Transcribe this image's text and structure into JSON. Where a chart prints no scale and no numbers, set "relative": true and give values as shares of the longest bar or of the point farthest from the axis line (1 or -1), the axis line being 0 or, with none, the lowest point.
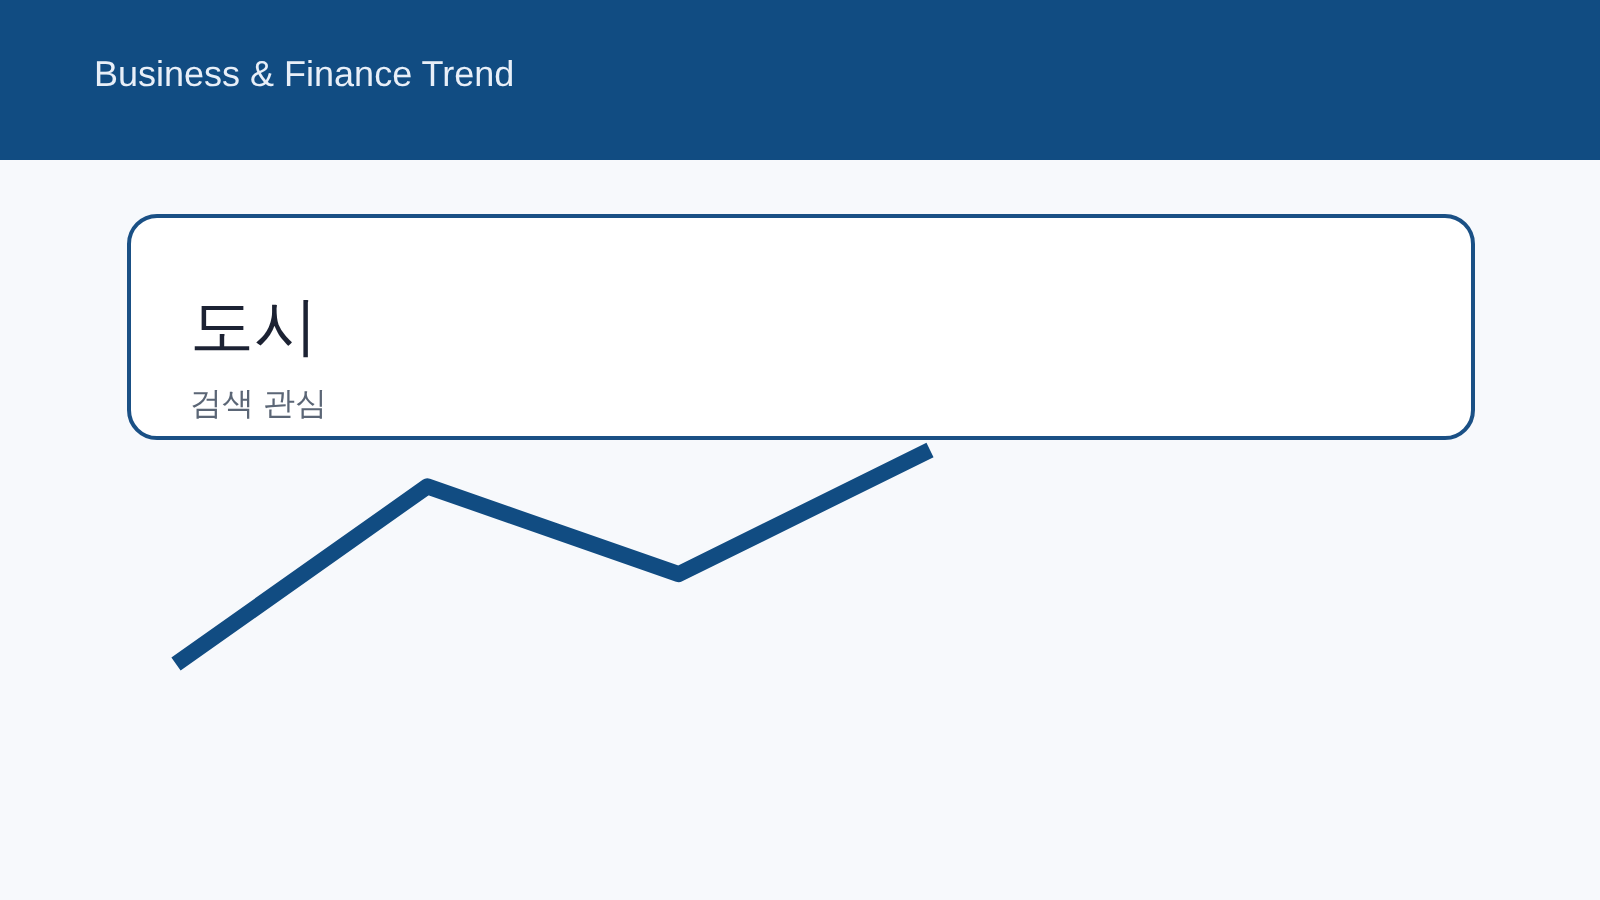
{
  "chart_data": {
    "type": "line",
    "title": "도시",
    "subtitle": "검색 관심",
    "annotations": [
      "Business & Finance Trend"
    ],
    "categories": [
      null,
      null,
      null,
      null
    ],
    "relative": true,
    "series": [
      {
        "color": "#114c82",
        "values": [
          0,
          0.83,
          0.42,
          1
        ]
      }
    ]
  }
}
